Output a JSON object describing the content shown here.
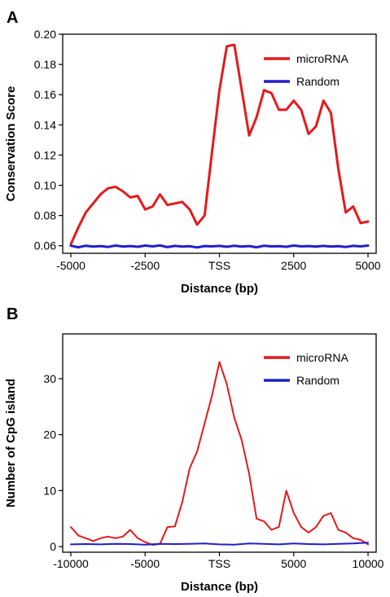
{
  "chart_data": [
    {
      "panel": "A",
      "type": "line",
      "xlabel": "Distance (bp)",
      "ylabel": "Conservation Score",
      "xlim": [
        -5000,
        5000
      ],
      "ylim": [
        0.055,
        0.2
      ],
      "x_ticks": [
        {
          "value": -5000,
          "label": "-5000"
        },
        {
          "value": -2500,
          "label": "-2500"
        },
        {
          "value": 0,
          "label": "TSS"
        },
        {
          "value": 2500,
          "label": "2500"
        },
        {
          "value": 5000,
          "label": "5000"
        }
      ],
      "y_ticks": [
        {
          "value": 0.06,
          "label": "0.06"
        },
        {
          "value": 0.08,
          "label": "0.08"
        },
        {
          "value": 0.1,
          "label": "0.10"
        },
        {
          "value": 0.12,
          "label": "0.12"
        },
        {
          "value": 0.14,
          "label": "0.14"
        },
        {
          "value": 0.16,
          "label": "0.16"
        },
        {
          "value": 0.18,
          "label": "0.18"
        },
        {
          "value": 0.2,
          "label": "0.20"
        }
      ],
      "legend_position": "top-right",
      "series": [
        {
          "name": "microRNA",
          "color": "#e41a1c",
          "points": [
            [
              -5000,
              0.061
            ],
            [
              -4750,
              0.072
            ],
            [
              -4500,
              0.082
            ],
            [
              -4250,
              0.088
            ],
            [
              -4000,
              0.094
            ],
            [
              -3750,
              0.098
            ],
            [
              -3500,
              0.099
            ],
            [
              -3250,
              0.096
            ],
            [
              -3000,
              0.092
            ],
            [
              -2750,
              0.093
            ],
            [
              -2500,
              0.084
            ],
            [
              -2250,
              0.086
            ],
            [
              -2000,
              0.094
            ],
            [
              -1750,
              0.087
            ],
            [
              -1500,
              0.088
            ],
            [
              -1250,
              0.089
            ],
            [
              -1000,
              0.084
            ],
            [
              -750,
              0.074
            ],
            [
              -500,
              0.08
            ],
            [
              -250,
              0.122
            ],
            [
              0,
              0.163
            ],
            [
              250,
              0.192
            ],
            [
              500,
              0.193
            ],
            [
              750,
              0.163
            ],
            [
              1000,
              0.133
            ],
            [
              1250,
              0.145
            ],
            [
              1500,
              0.163
            ],
            [
              1750,
              0.161
            ],
            [
              2000,
              0.15
            ],
            [
              2250,
              0.15
            ],
            [
              2500,
              0.156
            ],
            [
              2750,
              0.15
            ],
            [
              3000,
              0.134
            ],
            [
              3250,
              0.139
            ],
            [
              3500,
              0.156
            ],
            [
              3750,
              0.148
            ],
            [
              4000,
              0.111
            ],
            [
              4250,
              0.082
            ],
            [
              4500,
              0.086
            ],
            [
              4750,
              0.075
            ],
            [
              5000,
              0.076
            ]
          ]
        },
        {
          "name": "Random",
          "color": "#1f1fcc",
          "points": [
            [
              -5000,
              0.06
            ],
            [
              -4750,
              0.059
            ],
            [
              -4500,
              0.06
            ],
            [
              -4250,
              0.0595
            ],
            [
              -4000,
              0.0598
            ],
            [
              -3750,
              0.0592
            ],
            [
              -3500,
              0.0601
            ],
            [
              -3250,
              0.0595
            ],
            [
              -3000,
              0.0598
            ],
            [
              -2750,
              0.0593
            ],
            [
              -2500,
              0.0601
            ],
            [
              -2250,
              0.0596
            ],
            [
              -2000,
              0.0602
            ],
            [
              -1750,
              0.0591
            ],
            [
              -1500,
              0.0599
            ],
            [
              -1250,
              0.0594
            ],
            [
              -1000,
              0.0597
            ],
            [
              -750,
              0.0589
            ],
            [
              -500,
              0.0598
            ],
            [
              -250,
              0.0596
            ],
            [
              0,
              0.0599
            ],
            [
              250,
              0.0593
            ],
            [
              500,
              0.06
            ],
            [
              750,
              0.0595
            ],
            [
              1000,
              0.0598
            ],
            [
              1250,
              0.059
            ],
            [
              1500,
              0.06
            ],
            [
              1750,
              0.0596
            ],
            [
              2000,
              0.0597
            ],
            [
              2250,
              0.0593
            ],
            [
              2500,
              0.0601
            ],
            [
              2750,
              0.0596
            ],
            [
              3000,
              0.0598
            ],
            [
              3250,
              0.0594
            ],
            [
              3500,
              0.0599
            ],
            [
              3750,
              0.0595
            ],
            [
              4000,
              0.0597
            ],
            [
              4250,
              0.0592
            ],
            [
              4500,
              0.0599
            ],
            [
              4750,
              0.0596
            ],
            [
              5000,
              0.0601
            ]
          ]
        }
      ]
    },
    {
      "panel": "B",
      "type": "line",
      "xlabel": "Distance (bp)",
      "ylabel": "Number of CpG island",
      "xlim": [
        -10000,
        10000
      ],
      "ylim": [
        -1,
        38
      ],
      "x_ticks": [
        {
          "value": -10000,
          "label": "-10000"
        },
        {
          "value": -5000,
          "label": "-5000"
        },
        {
          "value": 0,
          "label": "TSS"
        },
        {
          "value": 5000,
          "label": "5000"
        },
        {
          "value": 10000,
          "label": "10000"
        }
      ],
      "y_ticks": [
        {
          "value": 0,
          "label": "0"
        },
        {
          "value": 10,
          "label": "10"
        },
        {
          "value": 20,
          "label": "20"
        },
        {
          "value": 30,
          "label": "30"
        }
      ],
      "legend_position": "top-right",
      "series": [
        {
          "name": "microRNA",
          "color": "#e41a1c",
          "points": [
            [
              -10000,
              3.5
            ],
            [
              -9500,
              2.0
            ],
            [
              -9000,
              1.5
            ],
            [
              -8500,
              1.0
            ],
            [
              -8000,
              1.5
            ],
            [
              -7500,
              1.8
            ],
            [
              -7000,
              1.5
            ],
            [
              -6500,
              1.8
            ],
            [
              -6000,
              3.0
            ],
            [
              -5500,
              1.5
            ],
            [
              -5000,
              0.8
            ],
            [
              -4500,
              0.3
            ],
            [
              -4000,
              0.5
            ],
            [
              -3500,
              3.5
            ],
            [
              -3000,
              3.6
            ],
            [
              -2500,
              8.0
            ],
            [
              -2000,
              14.0
            ],
            [
              -1500,
              17.0
            ],
            [
              -1000,
              22.0
            ],
            [
              -500,
              27.0
            ],
            [
              0,
              33.0
            ],
            [
              500,
              29.0
            ],
            [
              1000,
              23.0
            ],
            [
              1500,
              19.0
            ],
            [
              2000,
              13.0
            ],
            [
              2500,
              5.0
            ],
            [
              3000,
              4.5
            ],
            [
              3500,
              3.0
            ],
            [
              4000,
              3.5
            ],
            [
              4500,
              10.0
            ],
            [
              5000,
              6.0
            ],
            [
              5500,
              3.5
            ],
            [
              6000,
              2.5
            ],
            [
              6500,
              3.5
            ],
            [
              7000,
              5.5
            ],
            [
              7500,
              6.0
            ],
            [
              8000,
              3.0
            ],
            [
              8500,
              2.5
            ],
            [
              9000,
              1.5
            ],
            [
              9500,
              1.2
            ],
            [
              10000,
              0.4
            ]
          ]
        },
        {
          "name": "Random",
          "color": "#1f1fcc",
          "points": [
            [
              -10000,
              0.4
            ],
            [
              -9000,
              0.45
            ],
            [
              -8000,
              0.4
            ],
            [
              -7000,
              0.5
            ],
            [
              -6000,
              0.45
            ],
            [
              -5000,
              0.35
            ],
            [
              -4000,
              0.5
            ],
            [
              -3000,
              0.45
            ],
            [
              -2000,
              0.5
            ],
            [
              -1000,
              0.55
            ],
            [
              0,
              0.4
            ],
            [
              1000,
              0.35
            ],
            [
              2000,
              0.55
            ],
            [
              3000,
              0.5
            ],
            [
              4000,
              0.4
            ],
            [
              5000,
              0.55
            ],
            [
              6000,
              0.45
            ],
            [
              7000,
              0.4
            ],
            [
              8000,
              0.5
            ],
            [
              9000,
              0.55
            ],
            [
              10000,
              0.7
            ]
          ]
        }
      ]
    }
  ]
}
